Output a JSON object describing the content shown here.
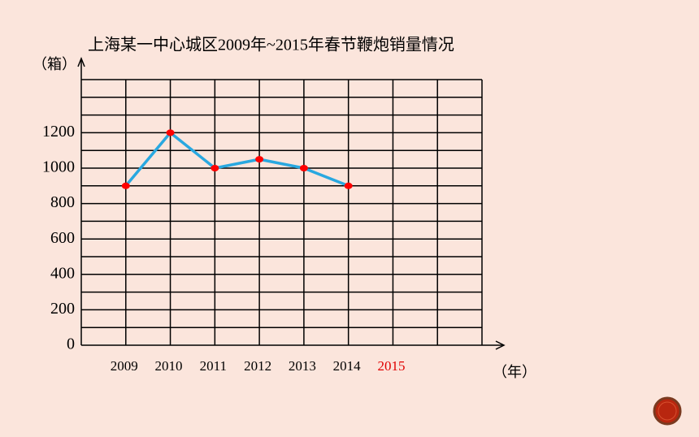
{
  "chart_data": {
    "type": "line",
    "title": "上海某一中心城区2009年~2015年春节鞭炮销量情况",
    "y_label": "（箱）",
    "x_label": "（年）",
    "categories": [
      "2009",
      "2010",
      "2011",
      "2012",
      "2013",
      "2014",
      "2015"
    ],
    "category_label_colors": [
      "#000000",
      "#000000",
      "#000000",
      "#000000",
      "#000000",
      "#000000",
      "#e00000"
    ],
    "series": [
      {
        "name": "销量",
        "color": "#29a8e0",
        "marker_color": "#ff0000",
        "values": [
          900,
          1200,
          1000,
          1050,
          1000,
          900,
          null
        ]
      }
    ],
    "ylim": [
      0,
      1500
    ],
    "yticks": [
      0,
      200,
      400,
      600,
      800,
      1000,
      1200
    ],
    "grid_yticks": [
      100,
      200,
      300,
      400,
      500,
      600,
      700,
      800,
      900,
      1000,
      1100,
      1200,
      1300,
      1400,
      1500
    ],
    "grid": true
  }
}
